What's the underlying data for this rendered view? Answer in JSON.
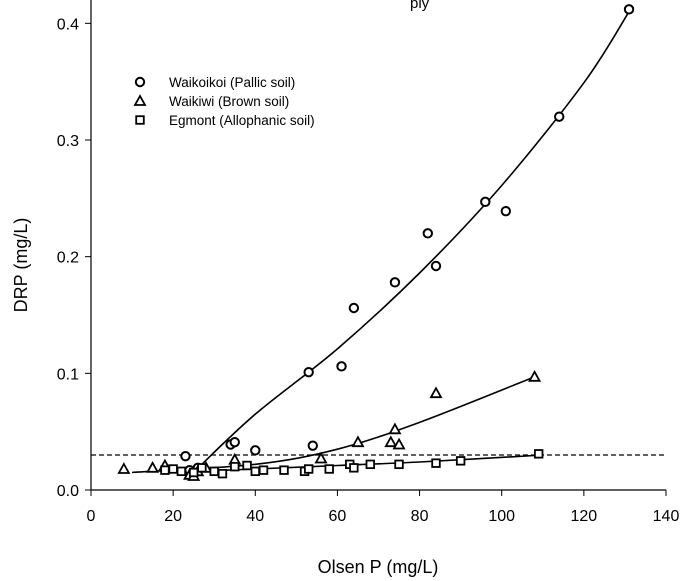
{
  "chart_data": {
    "type": "scatter",
    "title": "ply",
    "xlabel": "Olsen P (mg/L)",
    "ylabel": "DRP (mg/L)",
    "xlim": [
      0,
      140
    ],
    "ylim": [
      0,
      0.42
    ],
    "xticks": [
      "0",
      "20",
      "40",
      "60",
      "80",
      "100",
      "120",
      "140"
    ],
    "yticks": [
      "0.0",
      "0.1",
      "0.2",
      "0.3",
      "0.4"
    ],
    "legend_position": "top-left",
    "grid": false,
    "reference_line": {
      "y": 0.03,
      "style": "dashed"
    },
    "series": [
      {
        "name": "Waikoikoi (Pallic soil)",
        "marker": "circle",
        "points": [
          [
            23,
            0.029
          ],
          [
            24,
            0.017
          ],
          [
            26,
            0.019
          ],
          [
            34,
            0.039
          ],
          [
            35,
            0.041
          ],
          [
            40,
            0.034
          ],
          [
            53,
            0.101
          ],
          [
            54,
            0.038
          ],
          [
            61,
            0.106
          ],
          [
            64,
            0.156
          ],
          [
            74,
            0.178
          ],
          [
            82,
            0.22
          ],
          [
            84,
            0.192
          ],
          [
            96,
            0.247
          ],
          [
            101,
            0.239
          ],
          [
            114,
            0.32
          ],
          [
            131,
            0.412
          ]
        ],
        "fit": [
          [
            25.5,
            0.017
          ],
          [
            40,
            0.065
          ],
          [
            60,
            0.121
          ],
          [
            80,
            0.186
          ],
          [
            100,
            0.261
          ],
          [
            120,
            0.349
          ],
          [
            131,
            0.41
          ]
        ]
      },
      {
        "name": "Waikiwi (Brown soil)",
        "marker": "triangle",
        "points": [
          [
            8,
            0.018
          ],
          [
            15,
            0.019
          ],
          [
            18,
            0.021
          ],
          [
            24,
            0.013
          ],
          [
            25,
            0.012
          ],
          [
            26,
            0.016
          ],
          [
            28,
            0.019
          ],
          [
            35,
            0.026
          ],
          [
            56,
            0.027
          ],
          [
            65,
            0.041
          ],
          [
            73,
            0.041
          ],
          [
            74,
            0.052
          ],
          [
            75,
            0.039
          ],
          [
            84,
            0.083
          ],
          [
            108,
            0.097
          ]
        ],
        "fit": [
          [
            10,
            0.015
          ],
          [
            40,
            0.022
          ],
          [
            60,
            0.035
          ],
          [
            80,
            0.058
          ],
          [
            108,
            0.097
          ]
        ]
      },
      {
        "name": "Egmont (Allophanic soil)",
        "marker": "square",
        "points": [
          [
            18,
            0.017
          ],
          [
            20,
            0.018
          ],
          [
            22,
            0.016
          ],
          [
            25,
            0.015
          ],
          [
            27,
            0.019
          ],
          [
            30,
            0.016
          ],
          [
            32,
            0.014
          ],
          [
            35,
            0.02
          ],
          [
            38,
            0.021
          ],
          [
            40,
            0.016
          ],
          [
            42,
            0.017
          ],
          [
            47,
            0.017
          ],
          [
            52,
            0.016
          ],
          [
            53,
            0.018
          ],
          [
            58,
            0.018
          ],
          [
            63,
            0.022
          ],
          [
            64,
            0.019
          ],
          [
            68,
            0.022
          ],
          [
            75,
            0.022
          ],
          [
            84,
            0.023
          ],
          [
            90,
            0.025
          ],
          [
            109,
            0.031
          ]
        ],
        "fit": [
          [
            18,
            0.015
          ],
          [
            40,
            0.018
          ],
          [
            60,
            0.021
          ],
          [
            80,
            0.024
          ],
          [
            110,
            0.03
          ]
        ]
      }
    ]
  }
}
